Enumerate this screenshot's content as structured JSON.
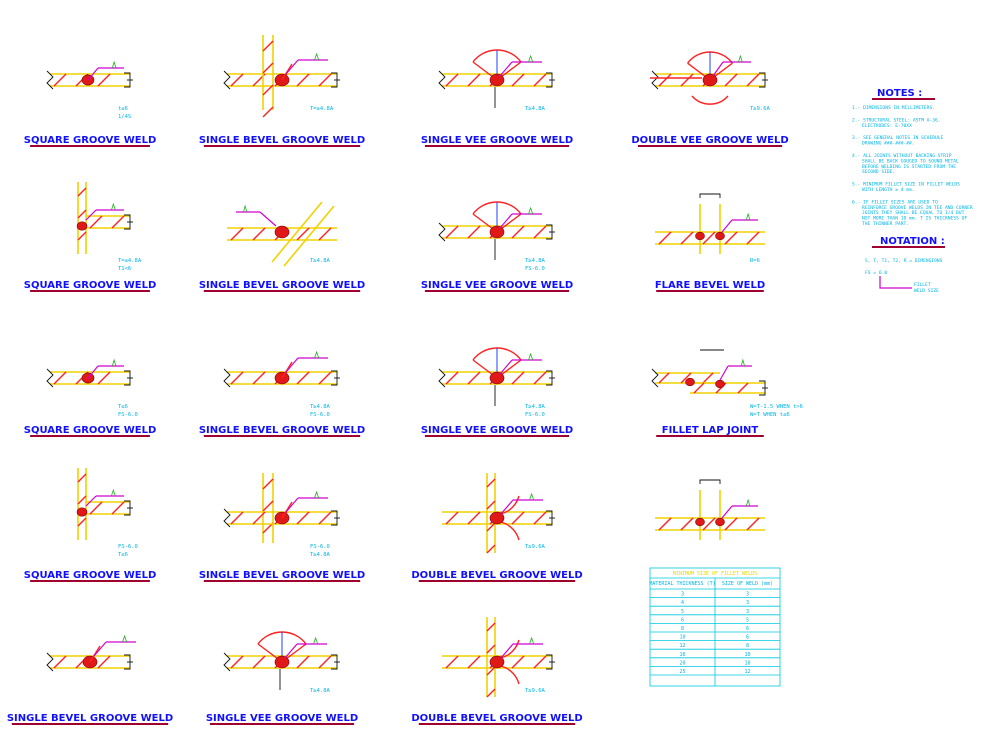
{
  "details": [
    {
      "title": "SQUARE GROOVE WELD",
      "col": 0,
      "row": 0,
      "kind": "square",
      "tags": [
        "t≤6",
        "1/4S"
      ]
    },
    {
      "title": "SINGLE BEVEL GROOVE WELD",
      "col": 1,
      "row": 0,
      "kind": "bevel",
      "tags": [
        "T=≥4.8A"
      ]
    },
    {
      "title": "SINGLE VEE GROOVE WELD",
      "col": 2,
      "row": 0,
      "kind": "vee",
      "tags": [
        "T≥4.8A"
      ]
    },
    {
      "title": "DOUBLE VEE GROOVE WELD",
      "col": 3,
      "row": 0,
      "kind": "dvee",
      "tags": [
        "T≥9.6A"
      ]
    },
    {
      "title": "SQUARE GROOVE WELD",
      "col": 0,
      "row": 1,
      "kind": "squareT",
      "tags": [
        "T=≤4.8A",
        "T1<6"
      ]
    },
    {
      "title": "SINGLE BEVEL GROOVE WELD",
      "col": 1,
      "row": 1,
      "kind": "bevel45",
      "tags": [
        "T≥4.8A"
      ]
    },
    {
      "title": "SINGLE VEE GROOVE WELD",
      "col": 2,
      "row": 1,
      "kind": "vee",
      "tags": [
        "T≥4.8A",
        "FS-6.0"
      ]
    },
    {
      "title": "FLARE BEVEL WELD",
      "col": 3,
      "row": 1,
      "kind": "flare",
      "tags": [
        "R=6"
      ]
    },
    {
      "title": "SQUARE GROOVE WELD",
      "col": 0,
      "row": 2,
      "kind": "square",
      "tags": [
        "T≤6",
        "FS-6.0"
      ]
    },
    {
      "title": "SINGLE BEVEL GROOVE WELD",
      "col": 1,
      "row": 2,
      "kind": "bevel",
      "tags": [
        "T≥4.8A",
        "FS-6.0"
      ]
    },
    {
      "title": "SINGLE VEE GROOVE WELD",
      "col": 2,
      "row": 2,
      "kind": "vee",
      "tags": [
        "T≥4.8A",
        "FS-6.0"
      ]
    },
    {
      "title": "FILLET LAP JOINT",
      "col": 3,
      "row": 2,
      "kind": "lap",
      "tags": [
        "W=T-1.5 WHEN t>6",
        "W=T WHEN t≤6"
      ]
    },
    {
      "title": "SQUARE GROOVE WELD",
      "col": 0,
      "row": 3,
      "kind": "squareT",
      "tags": [
        "FS-6.0",
        "T≤6"
      ]
    },
    {
      "title": "SINGLE BEVEL GROOVE WELD",
      "col": 1,
      "row": 3,
      "kind": "bevelT",
      "tags": [
        "FS-6.0",
        "T≥4.8A"
      ]
    },
    {
      "title": "DOUBLE BEVEL GROOVE WELD",
      "col": 2,
      "row": 3,
      "kind": "dbevel",
      "tags": [
        "T≥9.6A"
      ]
    },
    {
      "title": "",
      "col": 3,
      "row": 3,
      "kind": "flare2",
      "tags": []
    },
    {
      "title": "SINGLE BEVEL GROOVE WELD",
      "col": 0,
      "row": 4,
      "kind": "bevel",
      "tags": []
    },
    {
      "title": "SINGLE VEE GROOVE WELD",
      "col": 1,
      "row": 4,
      "kind": "vee",
      "tags": [
        "T≥4.8A"
      ]
    },
    {
      "title": "DOUBLE BEVEL GROOVE WELD",
      "col": 2,
      "row": 4,
      "kind": "dbevel",
      "tags": [
        "T≥9.6A"
      ]
    }
  ],
  "notes": {
    "heading": "NOTES :",
    "items": [
      "1.- DIMENSIONS IN MILLIMETERS.",
      "2.- STRUCTURAL STEEL: ASTM A-36. ELECTRODES: E-70XX",
      "3.- SEE GENERAL NOTES IN SCHEDULE DRAWING ###-###-##.",
      "4.- ALL JOINTS WITHOUT BACKING STRIP SHALL BE BACK GOUGED TO SOUND METAL BEFORE WELDING IS STARTED FROM THE SECOND SIDE.",
      "5.- MINIMUM FILLET SIZE IN FILLET WELDS WITH LENGTH ≥ 4 mm.",
      "6.- IF FILLET SIZES ARE USED TO REINFORCE GROOVE WELDS IN TEE AND CORNER JOINTS THEY SHALL BE EQUAL TO 1/4 BUT NOT MORE THAN 10 mm. T IS THICKNESS OF THE THINNER PART."
    ]
  },
  "notation": {
    "heading": "NOTATION :",
    "line1": "S, T, T1, T2, R = DIMENSIONS",
    "line2": "FS = 6.0",
    "sub1": "FILLET",
    "sub2": "WELD SIZE"
  },
  "table": {
    "title": "MINIMUM SIZE OF FILLET WELDS",
    "headers": [
      "MATERIAL THICKNESS (T)",
      "SIZE OF WELD (mm)"
    ],
    "rows": [
      [
        "3",
        "3"
      ],
      [
        "4",
        "3"
      ],
      [
        "5",
        "3"
      ],
      [
        "6",
        "5"
      ],
      [
        "8",
        "6"
      ],
      [
        "10",
        "6"
      ],
      [
        "12",
        "8"
      ],
      [
        "16",
        "10"
      ],
      [
        "20",
        "10"
      ],
      [
        "25",
        "12"
      ]
    ]
  }
}
